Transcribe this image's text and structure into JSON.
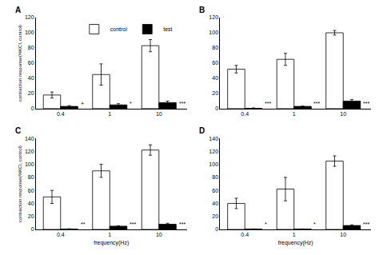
{
  "chart_data": [
    {
      "type": "bar",
      "title": "A",
      "categories": [
        "0.4",
        "1",
        "10"
      ],
      "series": [
        {
          "name": "control",
          "color": "white",
          "values": [
            18,
            45,
            83
          ],
          "errors": [
            4,
            14,
            8
          ]
        },
        {
          "name": "test",
          "color": "black",
          "values": [
            3,
            5,
            8
          ],
          "errors": [
            1,
            1.5,
            2
          ]
        }
      ],
      "ylim": [
        0,
        120
      ],
      "yticks": [
        0,
        20,
        40,
        60,
        80,
        100,
        120
      ],
      "ylabel": "contraction response(%KCl, control)",
      "annotations": [
        {
          "category": "0.4",
          "text": "+"
        },
        {
          "category": "1",
          "text": "*"
        },
        {
          "category": "10",
          "text": "***"
        }
      ],
      "legend": "upper left",
      "grid": false
    },
    {
      "type": "bar",
      "title": "B",
      "categories": [
        "0.4",
        "1",
        "10"
      ],
      "series": [
        {
          "name": "control",
          "color": "white",
          "values": [
            52,
            65,
            100
          ],
          "errors": [
            5,
            8,
            3
          ]
        },
        {
          "name": "test",
          "color": "black",
          "values": [
            0.5,
            3,
            10
          ],
          "errors": [
            0.5,
            0.5,
            2
          ]
        }
      ],
      "ylim": [
        0,
        120
      ],
      "yticks": [
        0,
        20,
        40,
        60,
        80,
        100,
        120
      ],
      "annotations": [
        {
          "category": "0.4",
          "text": "***"
        },
        {
          "category": "1",
          "text": "***"
        },
        {
          "category": "10",
          "text": "***"
        }
      ],
      "grid": false
    },
    {
      "type": "bar",
      "title": "C",
      "categories": [
        "0.4",
        "1",
        "10"
      ],
      "series": [
        {
          "name": "control",
          "color": "white",
          "values": [
            50,
            90,
            122
          ],
          "errors": [
            10,
            10,
            8
          ]
        },
        {
          "name": "test",
          "color": "black",
          "values": [
            0.5,
            5,
            8
          ],
          "errors": [
            0.5,
            0.5,
            1.5
          ]
        }
      ],
      "ylim": [
        0,
        140
      ],
      "yticks": [
        0,
        20,
        40,
        60,
        80,
        100,
        120,
        140
      ],
      "ylabel": "contraction response(%KCl, control)",
      "xlabel": "frequency(Hz)",
      "annotations": [
        {
          "category": "0.4",
          "text": "**"
        },
        {
          "category": "1",
          "text": "***"
        },
        {
          "category": "10",
          "text": "***"
        }
      ],
      "grid": false
    },
    {
      "type": "bar",
      "title": "D",
      "categories": [
        "0.4",
        "1",
        "10"
      ],
      "series": [
        {
          "name": "control",
          "color": "white",
          "values": [
            40,
            62,
            105
          ],
          "errors": [
            8,
            18,
            8
          ]
        },
        {
          "name": "test",
          "color": "black",
          "values": [
            0.5,
            0.5,
            6
          ],
          "errors": [
            0.3,
            0.3,
            1
          ]
        }
      ],
      "ylim": [
        0,
        140
      ],
      "yticks": [
        0,
        20,
        40,
        60,
        80,
        100,
        120,
        140
      ],
      "xlabel": "frequency(Hz)",
      "annotations": [
        {
          "category": "0.4",
          "text": "*"
        },
        {
          "category": "1",
          "text": "*"
        },
        {
          "category": "10",
          "text": "***"
        }
      ],
      "grid": false
    }
  ]
}
